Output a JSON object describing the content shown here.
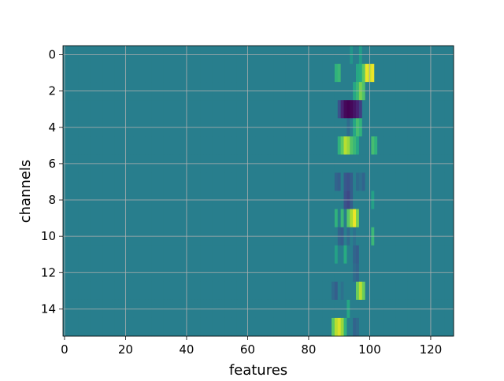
{
  "chart_data": {
    "type": "heatmap",
    "title": "",
    "xlabel": "features",
    "ylabel": "channels",
    "x_ticks": [
      0,
      20,
      40,
      60,
      80,
      100,
      120
    ],
    "y_ticks": [
      0,
      2,
      4,
      6,
      8,
      10,
      12,
      14
    ],
    "x_range": [
      -0.5,
      127.5
    ],
    "y_range": [
      -0.5,
      15.5
    ],
    "y_inverted": true,
    "grid": true,
    "colormap": "viridis",
    "value_range": [
      -1,
      1
    ],
    "n_rows": 16,
    "n_cols": 128,
    "background_value": -0.15,
    "description_of_cells": "sparse overrides on a near-uniform background; value -1 = dark purple, +1 = yellow",
    "cells": [
      {
        "row": 0,
        "col": 94,
        "value": 0.05
      },
      {
        "row": 0,
        "col": 97,
        "value": 0.1
      },
      {
        "row": 1,
        "col": 89,
        "value": 0.3
      },
      {
        "row": 1,
        "col": 90,
        "value": 0.35
      },
      {
        "row": 1,
        "col": 96,
        "value": 0.2
      },
      {
        "row": 1,
        "col": 97,
        "value": 0.25
      },
      {
        "row": 1,
        "col": 98,
        "value": 0.5
      },
      {
        "row": 1,
        "col": 99,
        "value": 0.95
      },
      {
        "row": 1,
        "col": 100,
        "value": 0.85
      },
      {
        "row": 1,
        "col": 101,
        "value": 0.95
      },
      {
        "row": 2,
        "col": 95,
        "value": 0.2
      },
      {
        "row": 2,
        "col": 96,
        "value": 0.35
      },
      {
        "row": 2,
        "col": 97,
        "value": 0.6
      },
      {
        "row": 2,
        "col": 98,
        "value": 0.45
      },
      {
        "row": 3,
        "col": 90,
        "value": -0.5
      },
      {
        "row": 3,
        "col": 91,
        "value": -0.75
      },
      {
        "row": 3,
        "col": 92,
        "value": -0.95
      },
      {
        "row": 3,
        "col": 93,
        "value": -1.0
      },
      {
        "row": 3,
        "col": 94,
        "value": -0.95
      },
      {
        "row": 3,
        "col": 95,
        "value": -0.85
      },
      {
        "row": 3,
        "col": 96,
        "value": -0.75
      },
      {
        "row": 3,
        "col": 97,
        "value": -0.6
      },
      {
        "row": 4,
        "col": 93,
        "value": -0.3
      },
      {
        "row": 4,
        "col": 95,
        "value": 0.2
      },
      {
        "row": 4,
        "col": 96,
        "value": 0.4
      },
      {
        "row": 4,
        "col": 97,
        "value": 0.3
      },
      {
        "row": 5,
        "col": 90,
        "value": 0.3
      },
      {
        "row": 5,
        "col": 91,
        "value": 0.5
      },
      {
        "row": 5,
        "col": 92,
        "value": 0.8
      },
      {
        "row": 5,
        "col": 93,
        "value": 0.7
      },
      {
        "row": 5,
        "col": 94,
        "value": 0.45
      },
      {
        "row": 5,
        "col": 95,
        "value": 0.35
      },
      {
        "row": 5,
        "col": 96,
        "value": 0.2
      },
      {
        "row": 5,
        "col": 101,
        "value": 0.4
      },
      {
        "row": 5,
        "col": 102,
        "value": 0.3
      },
      {
        "row": 7,
        "col": 89,
        "value": -0.35
      },
      {
        "row": 7,
        "col": 90,
        "value": -0.4
      },
      {
        "row": 7,
        "col": 92,
        "value": -0.45
      },
      {
        "row": 7,
        "col": 93,
        "value": -0.5
      },
      {
        "row": 7,
        "col": 94,
        "value": -0.4
      },
      {
        "row": 7,
        "col": 96,
        "value": -0.3
      },
      {
        "row": 7,
        "col": 97,
        "value": -0.25
      },
      {
        "row": 7,
        "col": 98,
        "value": -0.35
      },
      {
        "row": 8,
        "col": 92,
        "value": -0.5
      },
      {
        "row": 8,
        "col": 93,
        "value": -0.55
      },
      {
        "row": 8,
        "col": 94,
        "value": -0.4
      },
      {
        "row": 8,
        "col": 101,
        "value": 0.15
      },
      {
        "row": 9,
        "col": 89,
        "value": 0.3
      },
      {
        "row": 9,
        "col": 91,
        "value": 0.35
      },
      {
        "row": 9,
        "col": 93,
        "value": 0.5
      },
      {
        "row": 9,
        "col": 94,
        "value": 0.75
      },
      {
        "row": 9,
        "col": 95,
        "value": 0.95
      },
      {
        "row": 9,
        "col": 96,
        "value": 0.6
      },
      {
        "row": 10,
        "col": 90,
        "value": -0.35
      },
      {
        "row": 10,
        "col": 91,
        "value": -0.4
      },
      {
        "row": 10,
        "col": 93,
        "value": -0.3
      },
      {
        "row": 10,
        "col": 95,
        "value": -0.25
      },
      {
        "row": 10,
        "col": 101,
        "value": 0.35
      },
      {
        "row": 11,
        "col": 89,
        "value": 0.15
      },
      {
        "row": 11,
        "col": 92,
        "value": 0.25
      },
      {
        "row": 11,
        "col": 95,
        "value": -0.35
      },
      {
        "row": 11,
        "col": 96,
        "value": -0.4
      },
      {
        "row": 12,
        "col": 95,
        "value": -0.3
      },
      {
        "row": 12,
        "col": 96,
        "value": -0.35
      },
      {
        "row": 13,
        "col": 88,
        "value": -0.3
      },
      {
        "row": 13,
        "col": 89,
        "value": -0.4
      },
      {
        "row": 13,
        "col": 91,
        "value": -0.25
      },
      {
        "row": 13,
        "col": 96,
        "value": 0.55
      },
      {
        "row": 13,
        "col": 97,
        "value": 0.8
      },
      {
        "row": 13,
        "col": 98,
        "value": 0.55
      },
      {
        "row": 14,
        "col": 93,
        "value": 0.2
      },
      {
        "row": 15,
        "col": 88,
        "value": 0.5
      },
      {
        "row": 15,
        "col": 89,
        "value": 0.8
      },
      {
        "row": 15,
        "col": 90,
        "value": 0.9
      },
      {
        "row": 15,
        "col": 91,
        "value": 0.7
      },
      {
        "row": 15,
        "col": 92,
        "value": 0.3
      },
      {
        "row": 15,
        "col": 95,
        "value": -0.35
      },
      {
        "row": 15,
        "col": 96,
        "value": -0.3
      }
    ]
  }
}
